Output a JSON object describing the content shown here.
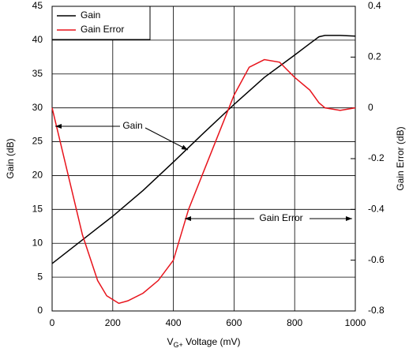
{
  "chart_data": {
    "type": "line",
    "x_label": [
      "V",
      "G+",
      " Voltage (mV)"
    ],
    "y_label": "Gain (dB)",
    "y2_label": "Gain Error (dB)",
    "xlim": [
      0,
      1000
    ],
    "xticks": [
      0,
      200,
      400,
      600,
      800,
      1000
    ],
    "ylim": [
      0,
      45
    ],
    "yticks": [
      0,
      5,
      10,
      15,
      20,
      25,
      30,
      35,
      40,
      45
    ],
    "y2lim": [
      -0.8,
      0.4
    ],
    "y2ticks": [
      -0.8,
      -0.6,
      -0.4,
      -0.2,
      0,
      0.2,
      0.4
    ],
    "grid": true,
    "legend": "upper left",
    "series": [
      {
        "name": "Gain",
        "color": "#000000",
        "x": [
          0,
          100,
          200,
          300,
          400,
          500,
          600,
          700,
          800,
          850,
          880,
          900,
          950,
          1000
        ],
        "values": [
          7,
          10.5,
          14,
          17.8,
          22,
          26.3,
          30.5,
          34.5,
          37.8,
          39.5,
          40.5,
          40.7,
          40.7,
          40.6
        ]
      },
      {
        "name": "Gain Error",
        "color": "#e8141c",
        "axis": "y2",
        "x": [
          0,
          50,
          100,
          150,
          180,
          220,
          250,
          300,
          350,
          400,
          450,
          500,
          550,
          600,
          650,
          700,
          750,
          800,
          850,
          880,
          900,
          950,
          1000
        ],
        "values": [
          0,
          -0.25,
          -0.5,
          -0.68,
          -0.74,
          -0.77,
          -0.76,
          -0.73,
          -0.68,
          -0.6,
          -0.4,
          -0.25,
          -0.1,
          0.05,
          0.16,
          0.19,
          0.18,
          0.12,
          0.07,
          0.02,
          0,
          -0.01,
          0
        ]
      }
    ],
    "annotations": [
      {
        "text": "Gain"
      },
      {
        "text": "Gain Error"
      }
    ]
  }
}
